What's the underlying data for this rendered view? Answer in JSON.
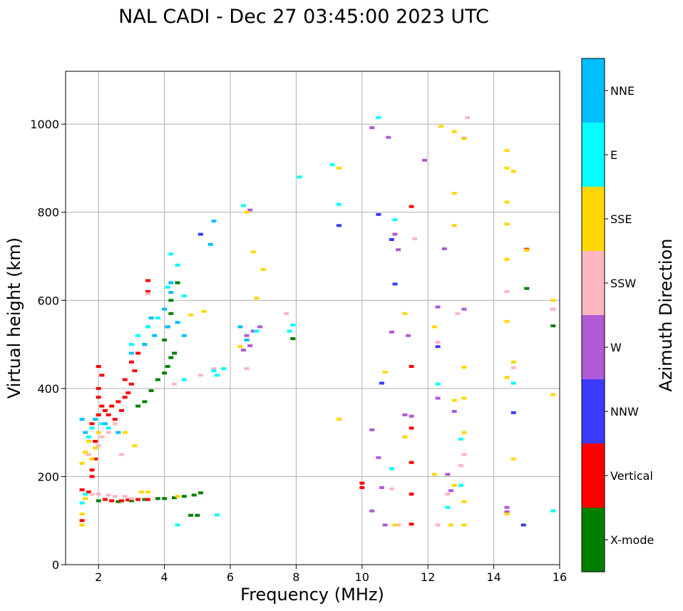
{
  "chart_data": {
    "type": "scatter",
    "title": "NAL CADI - Dec 27 03:45:00 2023 UTC",
    "xlabel": "Frequency (MHz)",
    "ylabel": "Virtual height (km)",
    "xlim": [
      1,
      16
    ],
    "ylim": [
      0,
      1120
    ],
    "xticks": [
      2,
      4,
      6,
      8,
      10,
      12,
      14,
      16
    ],
    "yticks": [
      0,
      200,
      400,
      600,
      800,
      1000
    ],
    "grid": true,
    "colorbar": {
      "label": "Azimuth Direction",
      "categories": [
        {
          "name": "X-mode",
          "color": "#008000"
        },
        {
          "name": "Vertical",
          "color": "#ff0000"
        },
        {
          "name": "NNW",
          "color": "#3a3aff"
        },
        {
          "name": "W",
          "color": "#b05ad6"
        },
        {
          "name": "SSW",
          "color": "#ffb6c1"
        },
        {
          "name": "SSE",
          "color": "#ffd700"
        },
        {
          "name": "E",
          "color": "#00ffff"
        },
        {
          "name": "NNE",
          "color": "#00bfff"
        }
      ]
    },
    "series": [
      {
        "name": "X-mode",
        "points": [
          [
            2.0,
            145
          ],
          [
            2.6,
            143
          ],
          [
            3.0,
            145
          ],
          [
            3.4,
            148
          ],
          [
            3.8,
            150
          ],
          [
            4.0,
            150
          ],
          [
            4.3,
            152
          ],
          [
            4.6,
            155
          ],
          [
            4.9,
            158
          ],
          [
            5.1,
            163
          ],
          [
            4.8,
            112
          ],
          [
            5.0,
            112
          ],
          [
            3.2,
            360
          ],
          [
            3.4,
            370
          ],
          [
            3.6,
            395
          ],
          [
            3.8,
            420
          ],
          [
            4.0,
            435
          ],
          [
            4.1,
            450
          ],
          [
            4.2,
            470
          ],
          [
            4.3,
            480
          ],
          [
            4.0,
            510
          ],
          [
            4.1,
            540
          ],
          [
            4.2,
            570
          ],
          [
            4.2,
            600
          ],
          [
            4.4,
            640
          ],
          [
            7.9,
            513
          ],
          [
            15.0,
            627
          ],
          [
            15.8,
            542
          ]
        ]
      },
      {
        "name": "Vertical",
        "points": [
          [
            1.5,
            100
          ],
          [
            1.5,
            170
          ],
          [
            1.7,
            165
          ],
          [
            1.8,
            200
          ],
          [
            1.8,
            215
          ],
          [
            1.9,
            240
          ],
          [
            1.9,
            280
          ],
          [
            1.8,
            320
          ],
          [
            2.0,
            340
          ],
          [
            2.1,
            360
          ],
          [
            2.0,
            380
          ],
          [
            2.2,
            350
          ],
          [
            2.3,
            340
          ],
          [
            2.4,
            360
          ],
          [
            2.5,
            330
          ],
          [
            2.6,
            370
          ],
          [
            2.7,
            350
          ],
          [
            2.8,
            380
          ],
          [
            2.9,
            390
          ],
          [
            3.0,
            410
          ],
          [
            2.8,
            420
          ],
          [
            3.1,
            440
          ],
          [
            3.0,
            460
          ],
          [
            3.2,
            480
          ],
          [
            3.4,
            500
          ],
          [
            2.0,
            400
          ],
          [
            2.1,
            430
          ],
          [
            2.0,
            450
          ],
          [
            3.5,
            620
          ],
          [
            3.5,
            645
          ],
          [
            2.2,
            148
          ],
          [
            2.4,
            145
          ],
          [
            2.7,
            145
          ],
          [
            2.9,
            147
          ],
          [
            3.2,
            148
          ],
          [
            3.5,
            148
          ],
          [
            10.0,
            185
          ],
          [
            10.0,
            175
          ],
          [
            11.5,
            92
          ],
          [
            11.5,
            160
          ],
          [
            11.5,
            232
          ],
          [
            11.5,
            310
          ],
          [
            11.5,
            450
          ],
          [
            11.5,
            813
          ],
          [
            15.0,
            716
          ],
          [
            15.8,
            580
          ]
        ]
      },
      {
        "name": "NNW",
        "points": [
          [
            3.5,
            540
          ],
          [
            5.1,
            750
          ],
          [
            4.4,
            680
          ],
          [
            10.6,
            412
          ],
          [
            9.3,
            770
          ],
          [
            10.5,
            795
          ],
          [
            10.9,
            738
          ],
          [
            11.0,
            637
          ],
          [
            12.3,
            495
          ],
          [
            14.9,
            90
          ],
          [
            14.6,
            345
          ],
          [
            14.4,
            120
          ]
        ]
      },
      {
        "name": "W",
        "points": [
          [
            6.4,
            487
          ],
          [
            6.6,
            497
          ],
          [
            6.5,
            520
          ],
          [
            6.7,
            530
          ],
          [
            6.9,
            540
          ],
          [
            10.3,
            306
          ],
          [
            10.5,
            243
          ],
          [
            10.6,
            175
          ],
          [
            10.3,
            122
          ],
          [
            10.7,
            90
          ],
          [
            10.9,
            528
          ],
          [
            10.8,
            970
          ],
          [
            10.3,
            992
          ],
          [
            11.9,
            918
          ],
          [
            11.1,
            715
          ],
          [
            11.0,
            750
          ],
          [
            11.4,
            520
          ],
          [
            11.3,
            340
          ],
          [
            11.5,
            337
          ],
          [
            12.5,
            717
          ],
          [
            12.3,
            585
          ],
          [
            12.3,
            378
          ],
          [
            12.6,
            205
          ],
          [
            12.7,
            168
          ],
          [
            12.8,
            348
          ],
          [
            13.1,
            580
          ],
          [
            13.1,
            968
          ],
          [
            14.4,
            130
          ],
          [
            14.4,
            120
          ],
          [
            6.6,
            805
          ]
        ]
      },
      {
        "name": "SSW",
        "points": [
          [
            1.8,
            160
          ],
          [
            2.0,
            160
          ],
          [
            2.3,
            158
          ],
          [
            2.5,
            155
          ],
          [
            2.8,
            155
          ],
          [
            3.0,
            150
          ],
          [
            1.7,
            250
          ],
          [
            2.0,
            270
          ],
          [
            2.1,
            290
          ],
          [
            2.3,
            300
          ],
          [
            2.5,
            320
          ],
          [
            2.7,
            250
          ],
          [
            3.5,
            615
          ],
          [
            4.3,
            410
          ],
          [
            5.1,
            430
          ],
          [
            5.5,
            445
          ],
          [
            6.5,
            445
          ],
          [
            7.7,
            570
          ],
          [
            10.9,
            172
          ],
          [
            11.1,
            90
          ],
          [
            11.6,
            740
          ],
          [
            12.3,
            505
          ],
          [
            12.3,
            90
          ],
          [
            12.6,
            160
          ],
          [
            12.9,
            570
          ],
          [
            13.1,
            250
          ],
          [
            13.0,
            225
          ],
          [
            13.2,
            1015
          ],
          [
            14.4,
            620
          ],
          [
            14.6,
            447
          ],
          [
            15.8,
            580
          ]
        ]
      },
      {
        "name": "SSE",
        "points": [
          [
            1.5,
            230
          ],
          [
            1.6,
            255
          ],
          [
            1.7,
            280
          ],
          [
            1.8,
            240
          ],
          [
            1.9,
            265
          ],
          [
            2.0,
            300
          ],
          [
            1.6,
            150
          ],
          [
            1.5,
            115
          ],
          [
            1.5,
            90
          ],
          [
            2.8,
            300
          ],
          [
            3.1,
            270
          ],
          [
            3.3,
            165
          ],
          [
            3.5,
            165
          ],
          [
            4.4,
            155
          ],
          [
            4.8,
            567
          ],
          [
            5.2,
            575
          ],
          [
            6.3,
            495
          ],
          [
            6.7,
            710
          ],
          [
            6.5,
            800
          ],
          [
            6.8,
            605
          ],
          [
            7.0,
            670
          ],
          [
            9.3,
            900
          ],
          [
            9.3,
            330
          ],
          [
            10.7,
            437
          ],
          [
            11.3,
            570
          ],
          [
            11.3,
            290
          ],
          [
            11.0,
            90
          ],
          [
            12.2,
            540
          ],
          [
            12.2,
            205
          ],
          [
            12.4,
            995
          ],
          [
            12.8,
            983
          ],
          [
            12.8,
            843
          ],
          [
            12.8,
            770
          ],
          [
            12.8,
            373
          ],
          [
            12.8,
            180
          ],
          [
            12.7,
            90
          ],
          [
            13.1,
            90
          ],
          [
            13.1,
            143
          ],
          [
            13.1,
            300
          ],
          [
            13.1,
            378
          ],
          [
            13.1,
            448
          ],
          [
            13.1,
            967
          ],
          [
            14.4,
            940
          ],
          [
            14.4,
            900
          ],
          [
            14.4,
            823
          ],
          [
            14.4,
            773
          ],
          [
            14.4,
            693
          ],
          [
            14.4,
            552
          ],
          [
            14.4,
            425
          ],
          [
            14.4,
            115
          ],
          [
            14.6,
            893
          ],
          [
            14.6,
            460
          ],
          [
            14.6,
            240
          ],
          [
            15.0,
            714
          ],
          [
            15.8,
            600
          ],
          [
            15.8,
            386
          ]
        ]
      },
      {
        "name": "E",
        "points": [
          [
            1.5,
            140
          ],
          [
            1.6,
            160
          ],
          [
            1.7,
            290
          ],
          [
            1.8,
            310
          ],
          [
            2.1,
            320
          ],
          [
            2.3,
            310
          ],
          [
            3.0,
            500
          ],
          [
            3.2,
            520
          ],
          [
            3.5,
            540
          ],
          [
            3.8,
            560
          ],
          [
            4.2,
            705
          ],
          [
            4.4,
            680
          ],
          [
            4.1,
            630
          ],
          [
            4.6,
            420
          ],
          [
            4.6,
            610
          ],
          [
            5.5,
            440
          ],
          [
            5.6,
            430
          ],
          [
            5.8,
            445
          ],
          [
            4.4,
            90
          ],
          [
            5.6,
            113
          ],
          [
            6.4,
            815
          ],
          [
            6.8,
            530
          ],
          [
            7.8,
            530
          ],
          [
            7.9,
            544
          ],
          [
            8.1,
            880
          ],
          [
            9.1,
            908
          ],
          [
            9.3,
            818
          ],
          [
            10.5,
            1015
          ],
          [
            10.9,
            218
          ],
          [
            11.0,
            783
          ],
          [
            12.3,
            410
          ],
          [
            12.6,
            130
          ],
          [
            13.0,
            285
          ],
          [
            13.0,
            180
          ],
          [
            14.6,
            412
          ],
          [
            15.8,
            122
          ]
        ]
      },
      {
        "name": "NNE",
        "points": [
          [
            1.5,
            330
          ],
          [
            1.6,
            300
          ],
          [
            1.9,
            330
          ],
          [
            2.2,
            320
          ],
          [
            2.6,
            300
          ],
          [
            3.0,
            480
          ],
          [
            3.4,
            500
          ],
          [
            3.6,
            560
          ],
          [
            3.7,
            520
          ],
          [
            4.0,
            580
          ],
          [
            4.1,
            540
          ],
          [
            4.2,
            640
          ],
          [
            4.2,
            618
          ],
          [
            4.4,
            550
          ],
          [
            4.6,
            520
          ],
          [
            5.5,
            780
          ],
          [
            5.4,
            727
          ],
          [
            6.3,
            540
          ],
          [
            6.5,
            510
          ]
        ]
      }
    ]
  }
}
